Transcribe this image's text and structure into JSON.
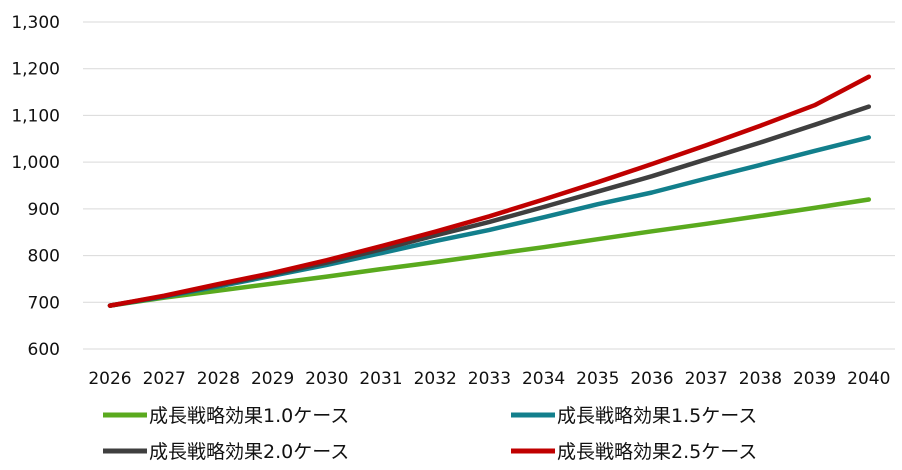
{
  "chart_data": {
    "type": "line",
    "title": "",
    "xlabel": "",
    "ylabel": "",
    "x": [
      "2026",
      "2027",
      "2028",
      "2029",
      "2030",
      "2031",
      "2032",
      "2033",
      "2034",
      "2035",
      "2036",
      "2037",
      "2038",
      "2039",
      "2040"
    ],
    "ylim": [
      600,
      1300
    ],
    "yticks": [
      "600",
      "700",
      "800",
      "900",
      "1,000",
      "1,100",
      "1,200",
      "1,300"
    ],
    "grid": true,
    "legend_position": "bottom",
    "series": [
      {
        "name": "成長戦略効果1.0ケース",
        "color": "#5aaa1e",
        "values": [
          693,
          710,
          725,
          740,
          755,
          771,
          786,
          802,
          818,
          835,
          852,
          868,
          885,
          902,
          920
        ]
      },
      {
        "name": "成長戦略効果1.5ケース",
        "color": "#127f8c",
        "values": [
          693,
          712,
          734,
          757,
          780,
          805,
          831,
          855,
          882,
          910,
          935,
          965,
          994,
          1024,
          1053
        ]
      },
      {
        "name": "成長戦略効果2.0ケース",
        "color": "#3f3f3f",
        "values": [
          693,
          713,
          737,
          760,
          785,
          813,
          843,
          872,
          904,
          937,
          970,
          1006,
          1042,
          1080,
          1119
        ]
      },
      {
        "name": "成長戦略効果2.5ケース",
        "color": "#c00000",
        "values": [
          693,
          714,
          739,
          763,
          790,
          820,
          851,
          884,
          920,
          957,
          996,
          1036,
          1078,
          1122,
          1183
        ]
      }
    ]
  }
}
